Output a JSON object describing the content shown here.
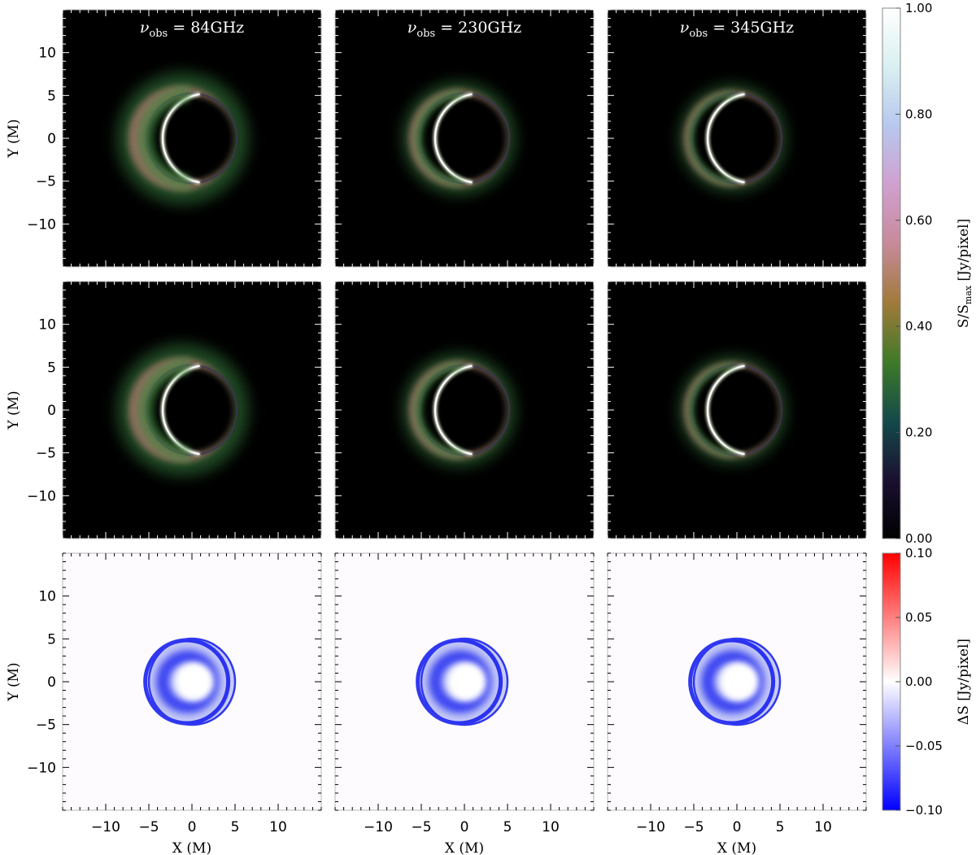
{
  "chart_data": {
    "type": "heatmap",
    "columns": [
      {
        "title_symbol": "ν",
        "title_sub": "obs",
        "title_value": " = 84GHz"
      },
      {
        "title_symbol": "ν",
        "title_sub": "obs",
        "title_value": " = 230GHz"
      },
      {
        "title_symbol": "ν",
        "title_sub": "obs",
        "title_value": " = 345GHz"
      }
    ],
    "xlabel": "X (M)",
    "ylabel": "Y (M)",
    "xlim": [
      -15,
      15
    ],
    "ylim": [
      -15,
      15
    ],
    "x_ticks": [
      -10,
      -5,
      0,
      5,
      10
    ],
    "y_ticks": [
      -10,
      -5,
      0,
      5,
      10
    ],
    "x_tick_labels": [
      "−10",
      "−5",
      "0",
      "5",
      "10"
    ],
    "y_tick_labels": [
      "−10",
      "−5",
      "0",
      "5",
      "10"
    ],
    "rows": [
      {
        "kind": "intensity",
        "panels": [
          {
            "ring_radius": 5.2,
            "crescent_offset": 1.2,
            "halo_width": 2.2
          },
          {
            "ring_radius": 5.2,
            "crescent_offset": 0.7,
            "halo_width": 1.2
          },
          {
            "ring_radius": 5.2,
            "crescent_offset": 0.55,
            "halo_width": 0.9
          }
        ]
      },
      {
        "kind": "intensity",
        "panels": [
          {
            "ring_radius": 5.2,
            "crescent_offset": 1.2,
            "halo_width": 2.2
          },
          {
            "ring_radius": 5.2,
            "crescent_offset": 0.7,
            "halo_width": 1.2
          },
          {
            "ring_radius": 5.2,
            "crescent_offset": 0.55,
            "halo_width": 0.9
          }
        ]
      },
      {
        "kind": "difference",
        "panels": [
          {
            "disk_radius": 5.0,
            "inner_ring_radius": 2.9
          },
          {
            "disk_radius": 5.0,
            "inner_ring_radius": 2.9
          },
          {
            "disk_radius": 5.0,
            "inner_ring_radius": 2.9
          }
        ]
      }
    ],
    "colorbars": [
      {
        "label_main": "S/S",
        "label_sub": "max",
        "label_rest": " [Jy/pixel]",
        "range": [
          0.0,
          1.0
        ],
        "ticks": [
          0.0,
          0.2,
          0.4,
          0.6,
          0.8,
          1.0
        ],
        "tick_labels": [
          "0.00",
          "0.20",
          "0.40",
          "0.60",
          "0.80",
          "1.00"
        ],
        "colors": [
          "#000000",
          "#1b1030",
          "#134a4a",
          "#3f7a28",
          "#a07a3a",
          "#c78a9a",
          "#d0a0cf",
          "#b7c8ee",
          "#d8f0f0",
          "#ffffff"
        ]
      },
      {
        "label_main": "ΔS [Jy/pixel]",
        "range": [
          -0.1,
          0.1
        ],
        "ticks": [
          -0.1,
          -0.05,
          0.0,
          0.05,
          0.1
        ],
        "tick_labels": [
          "−0.10",
          "−0.05",
          "0.00",
          "0.05",
          "0.10"
        ],
        "colors": [
          "#0000ff",
          "#ffffff",
          "#ff0000"
        ]
      }
    ]
  }
}
